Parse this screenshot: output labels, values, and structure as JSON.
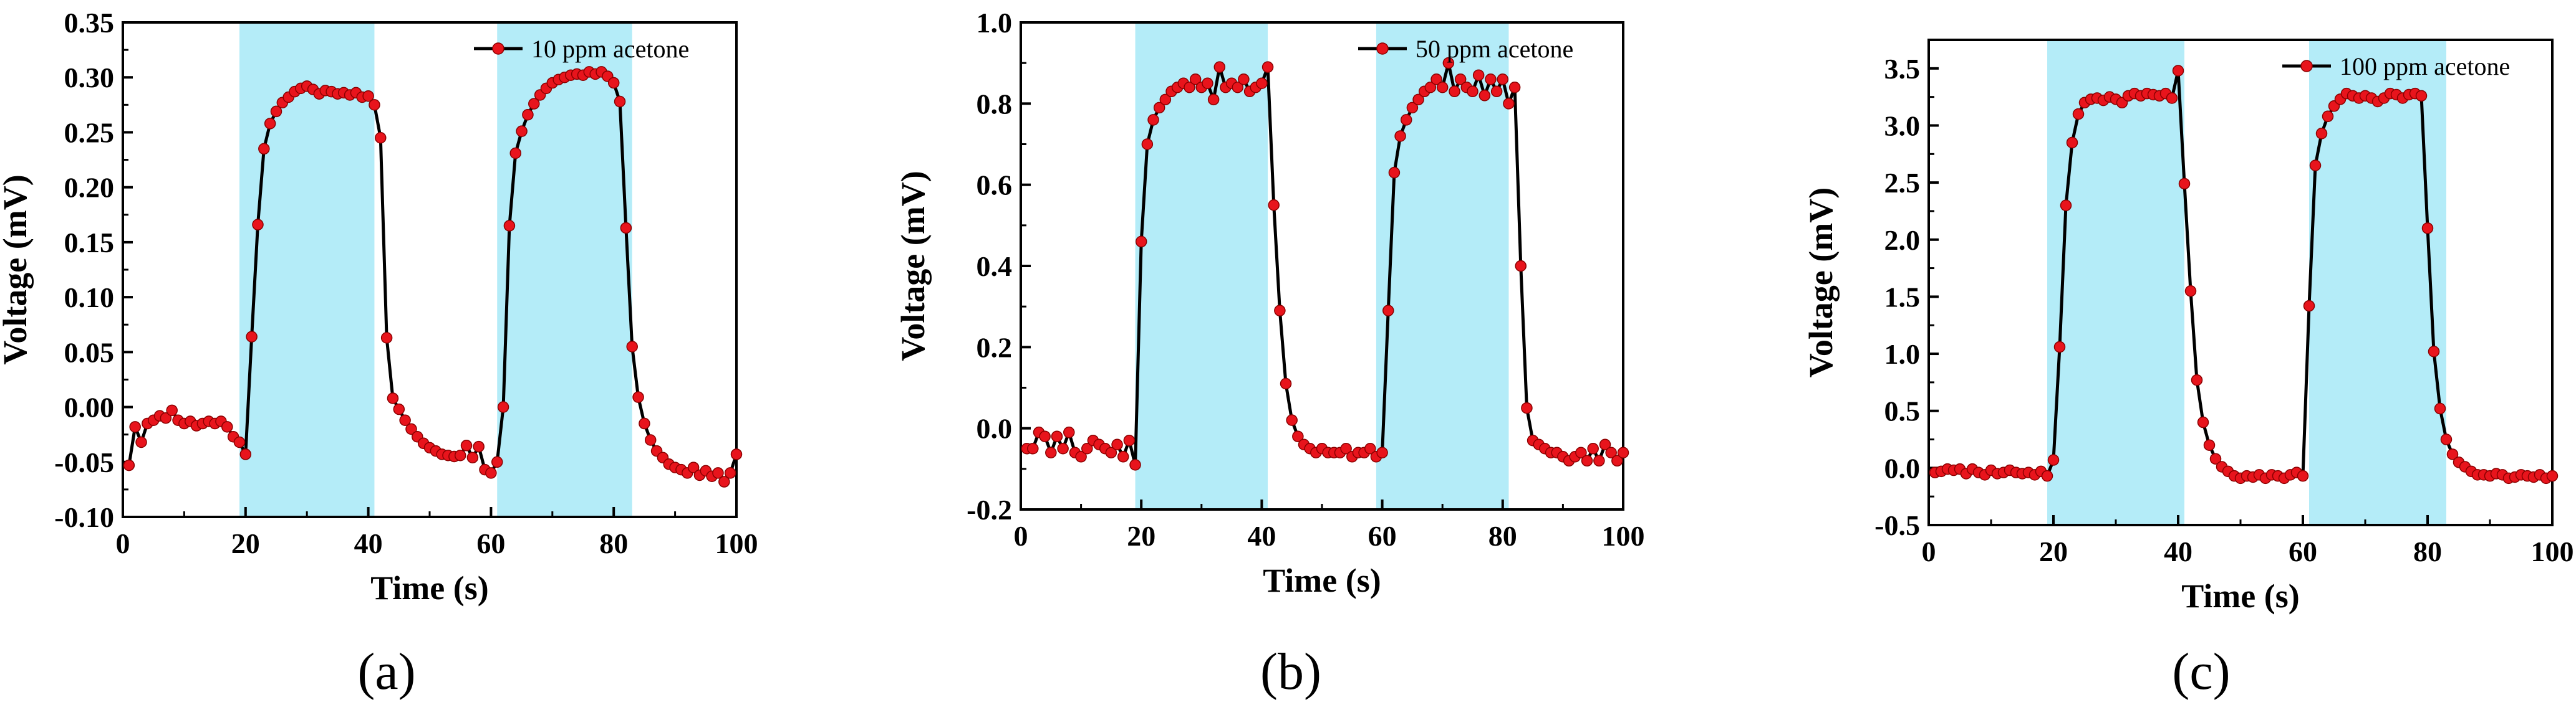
{
  "panels": [
    {
      "label": "(a)"
    },
    {
      "label": "(b)"
    },
    {
      "label": "(c)"
    }
  ],
  "chart_data": [
    {
      "type": "line",
      "title": "",
      "xlabel": "Time (s)",
      "ylabel": "Voltage (mV)",
      "xlim": [
        0,
        100
      ],
      "ylim": [
        -0.1,
        0.35
      ],
      "xticks": [
        "0",
        "20",
        "40",
        "60",
        "80",
        "100"
      ],
      "yticks": [
        "-0.10",
        "-0.05",
        "0.00",
        "0.05",
        "0.10",
        "0.15",
        "0.20",
        "0.25",
        "0.30",
        "0.35"
      ],
      "legend": "10 ppm acetone",
      "legend_position": "top-right",
      "shaded_intervals": [
        [
          19,
          41
        ],
        [
          61,
          83
        ]
      ],
      "series": [
        {
          "name": "10 ppm acetone",
          "color": "#e8141c",
          "x": [
            1,
            2,
            3,
            4,
            5,
            6,
            7,
            8,
            9,
            10,
            11,
            12,
            13,
            14,
            15,
            16,
            17,
            18,
            19,
            20,
            21,
            22,
            23,
            24,
            25,
            26,
            27,
            28,
            29,
            30,
            31,
            32,
            33,
            34,
            35,
            36,
            37,
            38,
            39,
            40,
            41,
            42,
            43,
            44,
            45,
            46,
            47,
            48,
            49,
            50,
            51,
            52,
            53,
            54,
            55,
            56,
            57,
            58,
            59,
            60,
            61,
            62,
            63,
            64,
            65,
            66,
            67,
            68,
            69,
            70,
            71,
            72,
            73,
            74,
            75,
            76,
            77,
            78,
            79,
            80,
            81,
            82,
            83,
            84,
            85,
            86,
            87,
            88,
            89,
            90,
            91,
            92,
            93,
            94,
            95,
            96,
            97,
            98,
            99,
            100
          ],
          "values": [
            -0.053,
            -0.018,
            -0.032,
            -0.015,
            -0.012,
            -0.008,
            -0.01,
            -0.003,
            -0.012,
            -0.015,
            -0.013,
            -0.017,
            -0.015,
            -0.013,
            -0.015,
            -0.013,
            -0.018,
            -0.027,
            -0.032,
            -0.043,
            0.064,
            0.166,
            0.235,
            0.258,
            0.269,
            0.277,
            0.282,
            0.287,
            0.29,
            0.292,
            0.289,
            0.285,
            0.288,
            0.287,
            0.285,
            0.286,
            0.284,
            0.286,
            0.282,
            0.283,
            0.275,
            0.245,
            0.063,
            0.008,
            -0.002,
            -0.012,
            -0.02,
            -0.027,
            -0.033,
            -0.037,
            -0.04,
            -0.043,
            -0.044,
            -0.045,
            -0.044,
            -0.035,
            -0.046,
            -0.036,
            -0.057,
            -0.06,
            -0.05,
            0.0,
            0.165,
            0.231,
            0.251,
            0.266,
            0.276,
            0.284,
            0.29,
            0.295,
            0.298,
            0.3,
            0.302,
            0.303,
            0.302,
            0.305,
            0.303,
            0.305,
            0.301,
            0.295,
            0.278,
            0.163,
            0.055,
            0.009,
            -0.015,
            -0.03,
            -0.04,
            -0.046,
            -0.052,
            -0.055,
            -0.057,
            -0.06,
            -0.055,
            -0.062,
            -0.058,
            -0.063,
            -0.06,
            -0.068,
            -0.06,
            -0.043
          ]
        }
      ]
    },
    {
      "type": "line",
      "title": "",
      "xlabel": "Time (s)",
      "ylabel": "Voltage (mV)",
      "xlim": [
        0,
        100
      ],
      "ylim": [
        -0.2,
        1.0
      ],
      "xticks": [
        "0",
        "20",
        "40",
        "60",
        "80",
        "100"
      ],
      "yticks": [
        "-0.2",
        "0.0",
        "0.2",
        "0.4",
        "0.6",
        "0.8",
        "1.0"
      ],
      "legend": "50 ppm acetone",
      "legend_position": "top-right",
      "shaded_intervals": [
        [
          19,
          41
        ],
        [
          59,
          81
        ]
      ],
      "series": [
        {
          "name": "50 ppm acetone",
          "color": "#e8141c",
          "x": [
            1,
            2,
            3,
            4,
            5,
            6,
            7,
            8,
            9,
            10,
            11,
            12,
            13,
            14,
            15,
            16,
            17,
            18,
            19,
            20,
            21,
            22,
            23,
            24,
            25,
            26,
            27,
            28,
            29,
            30,
            31,
            32,
            33,
            34,
            35,
            36,
            37,
            38,
            39,
            40,
            41,
            42,
            43,
            44,
            45,
            46,
            47,
            48,
            49,
            50,
            51,
            52,
            53,
            54,
            55,
            56,
            57,
            58,
            59,
            60,
            61,
            62,
            63,
            64,
            65,
            66,
            67,
            68,
            69,
            70,
            71,
            72,
            73,
            74,
            75,
            76,
            77,
            78,
            79,
            80,
            81,
            82,
            83,
            84,
            85,
            86,
            87,
            88,
            89,
            90,
            91,
            92,
            93,
            94,
            95,
            96,
            97,
            98,
            99,
            100
          ],
          "values": [
            -0.05,
            -0.05,
            -0.01,
            -0.02,
            -0.06,
            -0.02,
            -0.05,
            -0.01,
            -0.06,
            -0.07,
            -0.05,
            -0.03,
            -0.04,
            -0.05,
            -0.06,
            -0.04,
            -0.07,
            -0.03,
            -0.09,
            0.46,
            0.7,
            0.76,
            0.79,
            0.81,
            0.83,
            0.84,
            0.85,
            0.84,
            0.86,
            0.84,
            0.85,
            0.81,
            0.89,
            0.84,
            0.85,
            0.84,
            0.86,
            0.83,
            0.84,
            0.85,
            0.89,
            0.55,
            0.29,
            0.11,
            0.02,
            -0.02,
            -0.04,
            -0.05,
            -0.06,
            -0.05,
            -0.06,
            -0.06,
            -0.06,
            -0.05,
            -0.07,
            -0.06,
            -0.06,
            -0.05,
            -0.07,
            -0.06,
            0.29,
            0.63,
            0.72,
            0.76,
            0.79,
            0.81,
            0.83,
            0.84,
            0.86,
            0.84,
            0.9,
            0.83,
            0.86,
            0.84,
            0.83,
            0.87,
            0.82,
            0.86,
            0.83,
            0.86,
            0.8,
            0.84,
            0.4,
            0.05,
            -0.03,
            -0.04,
            -0.05,
            -0.06,
            -0.06,
            -0.07,
            -0.08,
            -0.07,
            -0.06,
            -0.08,
            -0.05,
            -0.08,
            -0.04,
            -0.06,
            -0.08,
            -0.06
          ]
        }
      ]
    },
    {
      "type": "line",
      "title": "",
      "xlabel": "Time (s)",
      "ylabel": "Voltage (mV)",
      "xlim": [
        0,
        100
      ],
      "ylim": [
        -0.5,
        3.75
      ],
      "xticks": [
        "0",
        "20",
        "40",
        "60",
        "80",
        "100"
      ],
      "yticks": [
        "-0.5",
        "0.0",
        "0.5",
        "1.0",
        "1.5",
        "2.0",
        "2.5",
        "3.0",
        "3.5"
      ],
      "legend": "100 ppm acetone",
      "legend_position": "top-right",
      "shaded_intervals": [
        [
          19,
          41
        ],
        [
          61,
          83
        ]
      ],
      "series": [
        {
          "name": "100 ppm acetone",
          "color": "#e8141c",
          "x": [
            1,
            2,
            3,
            4,
            5,
            6,
            7,
            8,
            9,
            10,
            11,
            12,
            13,
            14,
            15,
            16,
            17,
            18,
            19,
            20,
            21,
            22,
            23,
            24,
            25,
            26,
            27,
            28,
            29,
            30,
            31,
            32,
            33,
            34,
            35,
            36,
            37,
            38,
            39,
            40,
            41,
            42,
            43,
            44,
            45,
            46,
            47,
            48,
            49,
            50,
            51,
            52,
            53,
            54,
            55,
            56,
            57,
            58,
            59,
            60,
            61,
            62,
            63,
            64,
            65,
            66,
            67,
            68,
            69,
            70,
            71,
            72,
            73,
            74,
            75,
            76,
            77,
            78,
            79,
            80,
            81,
            82,
            83,
            84,
            85,
            86,
            87,
            88,
            89,
            90,
            91,
            92,
            93,
            94,
            95,
            96,
            97,
            98,
            99,
            100
          ],
          "values": [
            -0.04,
            -0.03,
            -0.01,
            -0.02,
            -0.01,
            -0.05,
            -0.01,
            -0.04,
            -0.06,
            -0.02,
            -0.05,
            -0.04,
            -0.02,
            -0.04,
            -0.05,
            -0.04,
            -0.06,
            -0.03,
            -0.07,
            0.07,
            1.06,
            2.3,
            2.85,
            3.1,
            3.2,
            3.23,
            3.24,
            3.22,
            3.25,
            3.23,
            3.2,
            3.26,
            3.28,
            3.26,
            3.28,
            3.27,
            3.26,
            3.28,
            3.24,
            3.48,
            2.49,
            1.55,
            0.77,
            0.4,
            0.2,
            0.08,
            0.01,
            -0.03,
            -0.07,
            -0.09,
            -0.07,
            -0.08,
            -0.06,
            -0.09,
            -0.06,
            -0.07,
            -0.09,
            -0.06,
            -0.04,
            -0.07,
            1.42,
            2.65,
            2.93,
            3.08,
            3.17,
            3.23,
            3.28,
            3.26,
            3.24,
            3.26,
            3.24,
            3.21,
            3.24,
            3.28,
            3.27,
            3.24,
            3.27,
            3.28,
            3.26,
            2.1,
            1.02,
            0.52,
            0.25,
            0.12,
            0.05,
            0.01,
            -0.03,
            -0.06,
            -0.06,
            -0.07,
            -0.05,
            -0.06,
            -0.09,
            -0.08,
            -0.06,
            -0.07,
            -0.08,
            -0.06,
            -0.09,
            -0.07
          ]
        }
      ]
    }
  ]
}
